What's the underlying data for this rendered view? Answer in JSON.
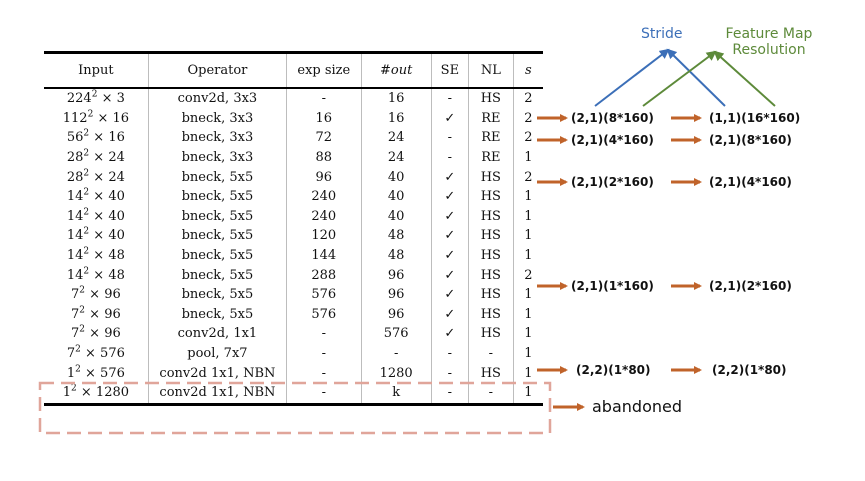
{
  "table": {
    "headers": {
      "input": "Input",
      "operator": "Operator",
      "exp_size": "exp size",
      "out": "#out",
      "se": "SE",
      "nl": "NL",
      "s": "s"
    },
    "rows": [
      {
        "input_base": "224",
        "input_exp": "2",
        "input_ch": "× 3",
        "operator": "conv2d, 3x3",
        "exp_size": "-",
        "out": "16",
        "se": "-",
        "nl": "HS",
        "s": "2"
      },
      {
        "input_base": "112",
        "input_exp": "2",
        "input_ch": "× 16",
        "operator": "bneck, 3x3",
        "exp_size": "16",
        "out": "16",
        "se": "✓",
        "nl": "RE",
        "s": "2"
      },
      {
        "input_base": "56",
        "input_exp": "2",
        "input_ch": "× 16",
        "operator": "bneck, 3x3",
        "exp_size": "72",
        "out": "24",
        "se": "-",
        "nl": "RE",
        "s": "2"
      },
      {
        "input_base": "28",
        "input_exp": "2",
        "input_ch": "× 24",
        "operator": "bneck, 3x3",
        "exp_size": "88",
        "out": "24",
        "se": "-",
        "nl": "RE",
        "s": "1"
      },
      {
        "input_base": "28",
        "input_exp": "2",
        "input_ch": "× 24",
        "operator": "bneck, 5x5",
        "exp_size": "96",
        "out": "40",
        "se": "✓",
        "nl": "HS",
        "s": "2"
      },
      {
        "input_base": "14",
        "input_exp": "2",
        "input_ch": "× 40",
        "operator": "bneck, 5x5",
        "exp_size": "240",
        "out": "40",
        "se": "✓",
        "nl": "HS",
        "s": "1"
      },
      {
        "input_base": "14",
        "input_exp": "2",
        "input_ch": "× 40",
        "operator": "bneck, 5x5",
        "exp_size": "240",
        "out": "40",
        "se": "✓",
        "nl": "HS",
        "s": "1"
      },
      {
        "input_base": "14",
        "input_exp": "2",
        "input_ch": "× 40",
        "operator": "bneck, 5x5",
        "exp_size": "120",
        "out": "48",
        "se": "✓",
        "nl": "HS",
        "s": "1"
      },
      {
        "input_base": "14",
        "input_exp": "2",
        "input_ch": "× 48",
        "operator": "bneck, 5x5",
        "exp_size": "144",
        "out": "48",
        "se": "✓",
        "nl": "HS",
        "s": "1"
      },
      {
        "input_base": "14",
        "input_exp": "2",
        "input_ch": "× 48",
        "operator": "bneck, 5x5",
        "exp_size": "288",
        "out": "96",
        "se": "✓",
        "nl": "HS",
        "s": "2"
      },
      {
        "input_base": "7",
        "input_exp": "2",
        "input_ch": "× 96",
        "operator": "bneck, 5x5",
        "exp_size": "576",
        "out": "96",
        "se": "✓",
        "nl": "HS",
        "s": "1"
      },
      {
        "input_base": "7",
        "input_exp": "2",
        "input_ch": "× 96",
        "operator": "bneck, 5x5",
        "exp_size": "576",
        "out": "96",
        "se": "✓",
        "nl": "HS",
        "s": "1"
      },
      {
        "input_base": "7",
        "input_exp": "2",
        "input_ch": "× 96",
        "operator": "conv2d, 1x1",
        "exp_size": "-",
        "out": "576",
        "se": "✓",
        "nl": "HS",
        "s": "1"
      },
      {
        "input_base": "7",
        "input_exp": "2",
        "input_ch": "× 576",
        "operator": "pool, 7x7",
        "exp_size": "-",
        "out": "-",
        "se": "-",
        "nl": "-",
        "s": "1"
      },
      {
        "input_base": "1",
        "input_exp": "2",
        "input_ch": "× 576",
        "operator": "conv2d 1x1, NBN",
        "exp_size": "-",
        "out": "1280",
        "se": "-",
        "nl": "HS",
        "s": "1"
      },
      {
        "input_base": "1",
        "input_exp": "2",
        "input_ch": "× 1280",
        "operator": "conv2d 1x1, NBN",
        "exp_size": "-",
        "out": "k",
        "se": "-",
        "nl": "-",
        "s": "1"
      }
    ]
  },
  "annotations": {
    "legend": {
      "stride": "Stride",
      "feature_map_line1": "Feature Map",
      "feature_map_line2": "Resolution"
    },
    "mappings": [
      {
        "from": "(2,1)(8*160)",
        "to": "(1,1)(16*160)"
      },
      {
        "from": "(2,1)(4*160)",
        "to": "(2,1)(8*160)"
      },
      {
        "from": "(2,1)(2*160)",
        "to": "(2,1)(4*160)"
      },
      {
        "from": "(2,1)(1*160)",
        "to": "(2,1)(2*160)"
      },
      {
        "from": "(2,2)(1*80)",
        "to": "(2,2)(1*80)"
      }
    ],
    "abandoned": "abandoned"
  },
  "colors": {
    "arrow": "#c0632a",
    "stride": "#3c6fb8",
    "feature_map": "#5d8a3a",
    "dashed_box": "#e0a59a"
  }
}
